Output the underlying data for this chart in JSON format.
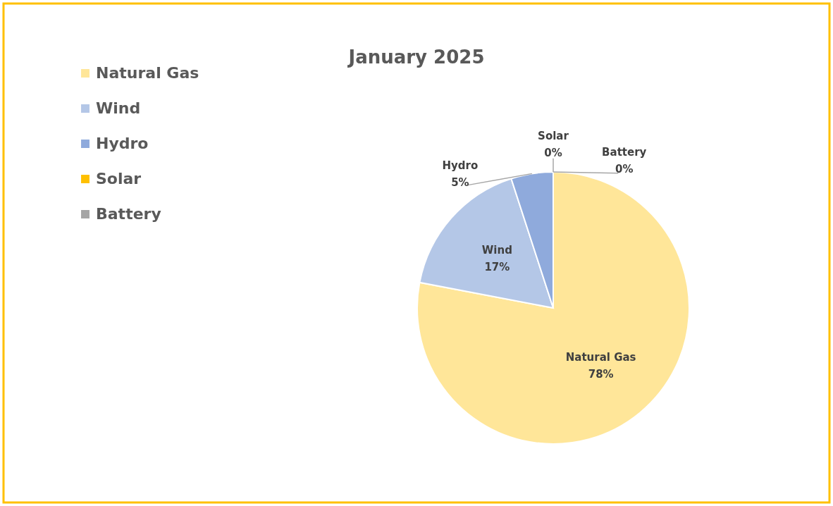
{
  "chart_data": {
    "type": "pie",
    "title": "January 2025",
    "categories": [
      "Natural Gas",
      "Wind",
      "Hydro",
      "Solar",
      "Battery"
    ],
    "values": [
      78,
      17,
      5,
      0,
      0
    ],
    "value_labels": [
      "78%",
      "17%",
      "5%",
      "0%",
      "0%"
    ],
    "colors": [
      "#ffe699",
      "#b4c7e7",
      "#8faadc",
      "#ffc000",
      "#a5a5a5"
    ],
    "legend": "left"
  }
}
